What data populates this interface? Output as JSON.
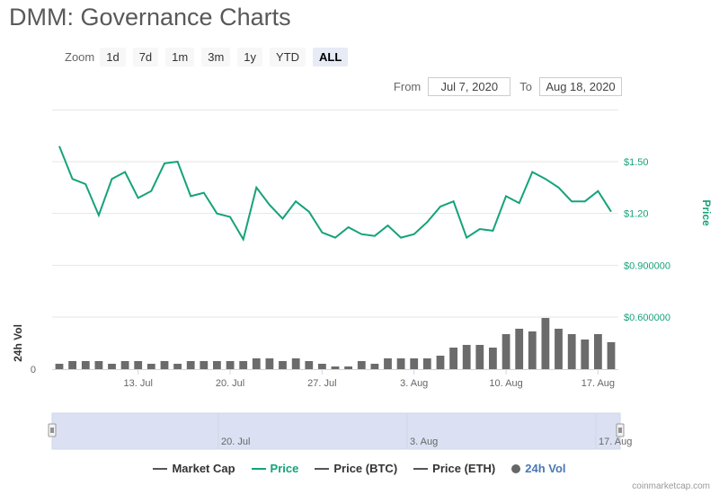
{
  "title": "DMM: Governance Charts",
  "zoom": {
    "label": "Zoom",
    "buttons": [
      "1d",
      "7d",
      "1m",
      "3m",
      "1y",
      "YTD",
      "ALL"
    ],
    "active": "ALL"
  },
  "range": {
    "from_label": "From",
    "from_value": "Jul 7, 2020",
    "to_label": "To",
    "to_value": "Aug 18, 2020"
  },
  "legend": [
    {
      "label": "Market Cap",
      "color": "#555555",
      "kind": "line"
    },
    {
      "label": "Price",
      "color": "#16a27a",
      "kind": "line"
    },
    {
      "label": "Price (BTC)",
      "color": "#555555",
      "kind": "line"
    },
    {
      "label": "Price (ETH)",
      "color": "#555555",
      "kind": "line"
    },
    {
      "label": "24h Vol",
      "color": "#666666",
      "kind": "dot"
    }
  ],
  "credits": "coinmarketcap.com",
  "colors": {
    "price": "#16a27a",
    "volume": "#6b6b6b",
    "navigator_fill": "#dbe1f2",
    "grid": "#e6e6e6"
  },
  "chart_data": {
    "type": "line",
    "x_tick_labels": [
      "13. Jul",
      "20. Jul",
      "27. Jul",
      "3. Aug",
      "10. Aug",
      "17. Aug"
    ],
    "x_tick_dates": [
      "2020-07-13",
      "2020-07-20",
      "2020-07-27",
      "2020-08-03",
      "2020-08-10",
      "2020-08-17"
    ],
    "x_range": [
      "2020-07-07",
      "2020-08-18"
    ],
    "price_axis": {
      "label": "Price",
      "ticks": [
        0.6,
        0.9,
        1.2,
        1.5
      ],
      "tick_labels": [
        "$0.600000",
        "$0.900000",
        "$1.20",
        "$1.50"
      ],
      "range": [
        0.6,
        1.8
      ]
    },
    "volume_axis": {
      "label": "24h Vol",
      "tick_labels": [
        "0"
      ]
    },
    "series": [
      {
        "name": "Price",
        "dates": [
          "2020-07-07",
          "2020-07-08",
          "2020-07-09",
          "2020-07-10",
          "2020-07-11",
          "2020-07-12",
          "2020-07-13",
          "2020-07-14",
          "2020-07-15",
          "2020-07-16",
          "2020-07-17",
          "2020-07-18",
          "2020-07-19",
          "2020-07-20",
          "2020-07-21",
          "2020-07-22",
          "2020-07-23",
          "2020-07-24",
          "2020-07-25",
          "2020-07-26",
          "2020-07-27",
          "2020-07-28",
          "2020-07-29",
          "2020-07-30",
          "2020-07-31",
          "2020-08-01",
          "2020-08-02",
          "2020-08-03",
          "2020-08-04",
          "2020-08-05",
          "2020-08-06",
          "2020-08-07",
          "2020-08-08",
          "2020-08-09",
          "2020-08-10",
          "2020-08-11",
          "2020-08-12",
          "2020-08-13",
          "2020-08-14",
          "2020-08-15",
          "2020-08-16",
          "2020-08-17",
          "2020-08-18"
        ],
        "values": [
          1.59,
          1.4,
          1.37,
          1.19,
          1.4,
          1.44,
          1.29,
          1.33,
          1.49,
          1.5,
          1.3,
          1.32,
          1.2,
          1.18,
          1.05,
          1.35,
          1.25,
          1.17,
          1.27,
          1.21,
          1.09,
          1.06,
          1.12,
          1.08,
          1.07,
          1.13,
          1.06,
          1.08,
          1.15,
          1.24,
          1.27,
          1.06,
          1.11,
          1.1,
          1.3,
          1.26,
          1.44,
          1.4,
          1.35,
          1.27,
          1.27,
          1.33,
          1.21
        ]
      },
      {
        "name": "24h Vol",
        "values": [
          2,
          3,
          3,
          3,
          2,
          3,
          3,
          2,
          3,
          2,
          3,
          3,
          3,
          3,
          3,
          4,
          4,
          3,
          4,
          3,
          2,
          1,
          1,
          3,
          2,
          4,
          4,
          4,
          4,
          5,
          8,
          9,
          9,
          8,
          13,
          15,
          14,
          19,
          15,
          13,
          11,
          13,
          10
        ]
      }
    ],
    "navigator": {
      "tick_labels": [
        "20. Jul",
        "3. Aug",
        "17. Aug"
      ],
      "tick_dates": [
        "2020-07-20",
        "2020-08-03",
        "2020-08-17"
      ]
    }
  }
}
